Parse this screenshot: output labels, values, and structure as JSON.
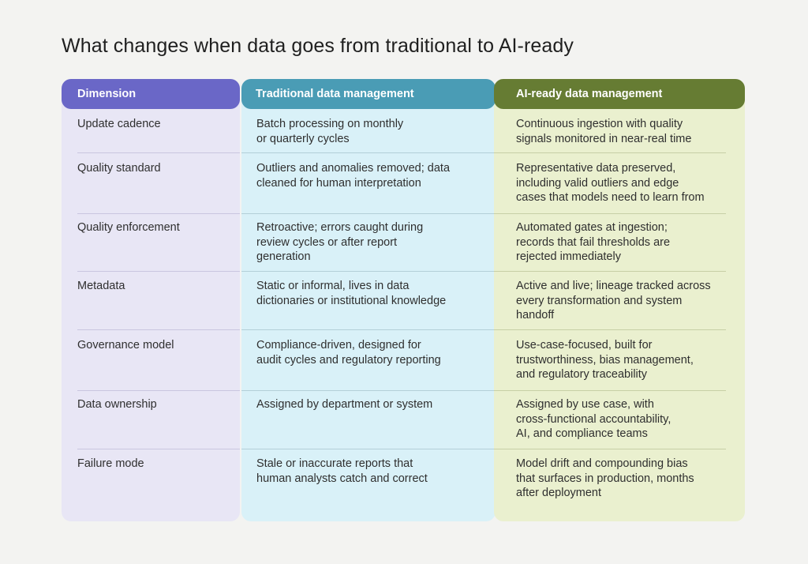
{
  "title": "What changes when data goes from traditional to AI-ready",
  "headers": {
    "dimension": "Dimension",
    "traditional": "Traditional data management",
    "ai_ready": "AI-ready data management"
  },
  "rows": [
    {
      "dimension": "Update cadence",
      "traditional": "Batch processing on monthly\nor quarterly cycles",
      "ai_ready": "Continuous ingestion with quality\nsignals monitored in near-real time"
    },
    {
      "dimension": "Quality standard",
      "traditional": "Outliers and anomalies removed; data\ncleaned for human interpretation",
      "ai_ready": "Representative data preserved,\nincluding valid outliers and edge\ncases that models need to learn from"
    },
    {
      "dimension": "Quality enforcement",
      "traditional": "Retroactive; errors caught during\nreview cycles or after report\ngeneration",
      "ai_ready": "Automated gates at ingestion;\nrecords that fail thresholds are\nrejected immediately"
    },
    {
      "dimension": "Metadata",
      "traditional": "Static or informal, lives in data\ndictionaries or institutional knowledge",
      "ai_ready": "Active and live; lineage tracked across\nevery transformation and system\nhandoff"
    },
    {
      "dimension": "Governance model",
      "traditional": "Compliance-driven, designed for\naudit cycles and regulatory reporting",
      "ai_ready": "Use-case-focused, built for\ntrustworthiness, bias management,\nand regulatory traceability"
    },
    {
      "dimension": "Data ownership",
      "traditional": "Assigned by department or system",
      "ai_ready": "Assigned by use case, with\ncross-functional accountability,\nAI, and compliance teams"
    },
    {
      "dimension": "Failure mode",
      "traditional": "Stale or inaccurate reports that\nhuman analysts catch and correct",
      "ai_ready": "Model drift and compounding bias\nthat surfaces in production, months\nafter deployment"
    }
  ]
}
